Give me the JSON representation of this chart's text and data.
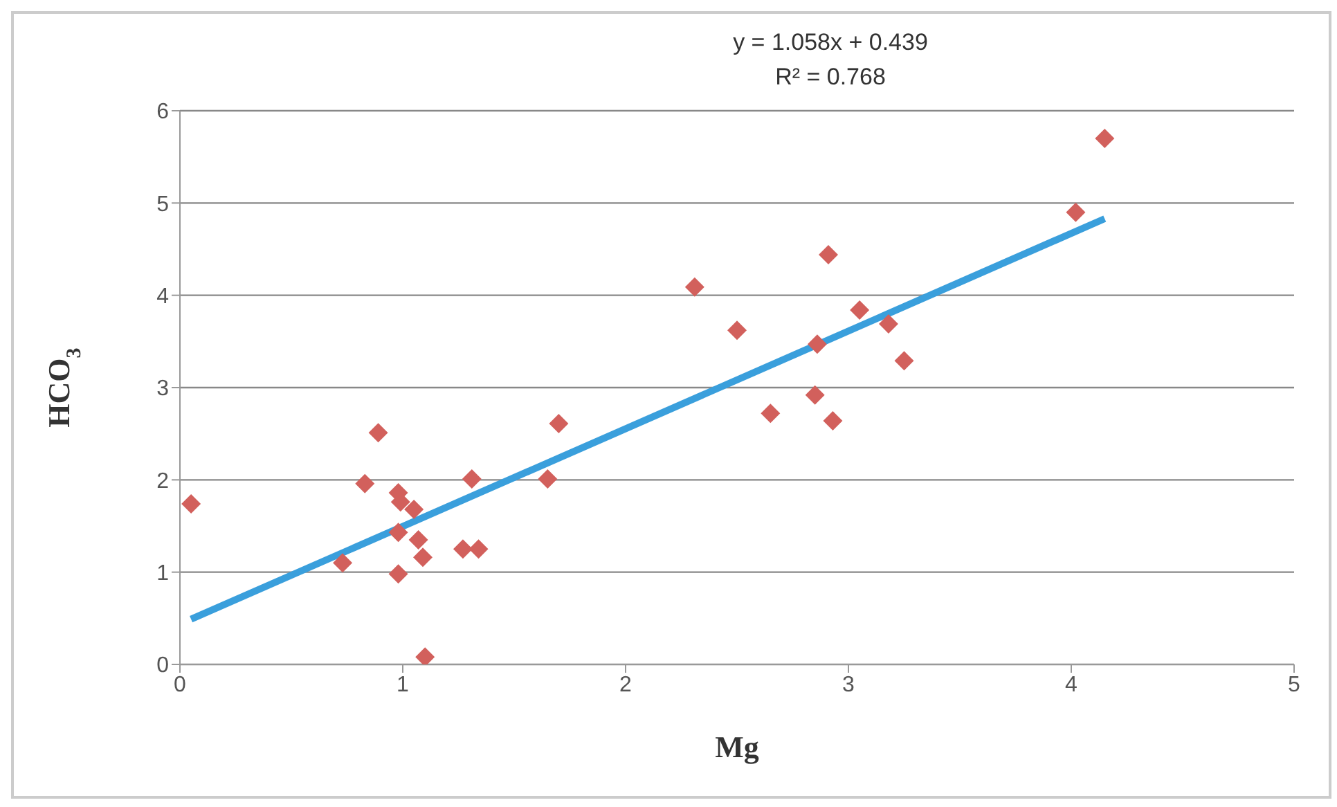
{
  "chart_data": {
    "type": "scatter",
    "xlabel": "Mg",
    "ylabel": "HCO$_{3}$",
    "annotations": [
      "y = 1.058x + 0.439",
      "R² = 0.768"
    ],
    "xlim": [
      0,
      5
    ],
    "xticks": [
      0,
      1,
      2,
      3,
      4,
      5
    ],
    "ylim": [
      0,
      6
    ],
    "yticks": [
      0,
      1,
      2,
      3,
      4,
      5,
      6
    ],
    "grid": "y",
    "legend": false,
    "series": [
      {
        "color": "#d2605c",
        "marker": "diamond",
        "x": [
          0.05,
          0.73,
          0.83,
          0.89,
          0.98,
          0.99,
          0.98,
          0.98,
          1.05,
          1.07,
          1.09,
          1.1,
          1.27,
          1.34,
          1.31,
          1.65,
          1.7,
          2.31,
          2.5,
          2.65,
          2.85,
          2.86,
          2.91,
          2.93,
          3.05,
          3.18,
          3.25,
          4.02,
          4.15
        ],
        "values": [
          1.74,
          1.1,
          1.96,
          2.51,
          1.86,
          1.76,
          1.43,
          0.98,
          1.68,
          1.35,
          1.16,
          0.08,
          1.25,
          1.25,
          2.01,
          2.01,
          2.61,
          4.09,
          3.62,
          2.72,
          2.92,
          3.47,
          4.44,
          2.64,
          3.84,
          3.69,
          3.29,
          4.9,
          5.7
        ]
      },
      {
        "type": "line",
        "color": "#3a9fdc",
        "marker": "none",
        "line_style": "solid",
        "x": [
          0.05,
          4.15
        ],
        "values": [
          0.49,
          4.83
        ]
      }
    ]
  }
}
